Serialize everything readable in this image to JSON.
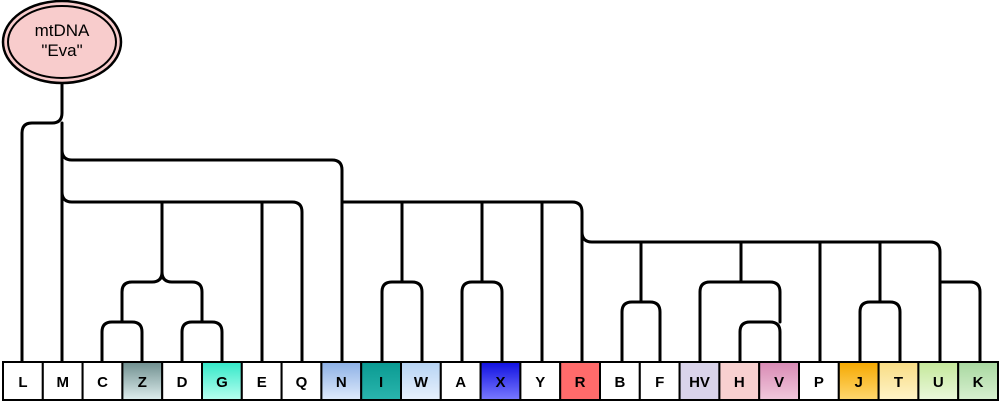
{
  "root": {
    "line1": "mtDNA",
    "line2": "\"Eva\""
  },
  "haplogroups": [
    {
      "label": "L",
      "color": "#ffffff"
    },
    {
      "label": "M",
      "color": "#ffffff"
    },
    {
      "label": "C",
      "color": "#ffffff"
    },
    {
      "label": "Z",
      "color": "#6f8f8f",
      "gradient": "#dfeeee"
    },
    {
      "label": "D",
      "color": "#ffffff"
    },
    {
      "label": "G",
      "color": "#33e8c8",
      "gradient": "#b8fff0"
    },
    {
      "label": "E",
      "color": "#ffffff"
    },
    {
      "label": "Q",
      "color": "#ffffff"
    },
    {
      "label": "N",
      "color": "#8cb0e6",
      "gradient": "#e0ebfb"
    },
    {
      "label": "I",
      "color": "#0a9a92",
      "gradient": "#2ab5ad"
    },
    {
      "label": "W",
      "color": "#b6d3f4",
      "gradient": "#e8f1fc"
    },
    {
      "label": "A",
      "color": "#ffffff"
    },
    {
      "label": "X",
      "color": "#1010e0",
      "gradient": "#7a7aff"
    },
    {
      "label": "Y",
      "color": "#ffffff"
    },
    {
      "label": "R",
      "color": "#ff6b6b"
    },
    {
      "label": "B",
      "color": "#ffffff"
    },
    {
      "label": "F",
      "color": "#ffffff"
    },
    {
      "label": "HV",
      "color": "#d9d3ea"
    },
    {
      "label": "H",
      "color": "#f8d0d0"
    },
    {
      "label": "V",
      "color": "#d98ab4",
      "gradient": "#f0c8dc"
    },
    {
      "label": "P",
      "color": "#ffffff"
    },
    {
      "label": "J",
      "color": "#f5a800",
      "gradient": "#ffd870"
    },
    {
      "label": "T",
      "color": "#f8dc84",
      "gradient": "#fff4c8"
    },
    {
      "label": "U",
      "color": "#c4e89a",
      "gradient": "#ebf8dc"
    },
    {
      "label": "K",
      "color": "#a8d8a0",
      "gradient": "#d8f0d0"
    }
  ],
  "colors": {
    "line": "#000000",
    "root_fill": "#f8cccc",
    "box_border": "#000000"
  }
}
